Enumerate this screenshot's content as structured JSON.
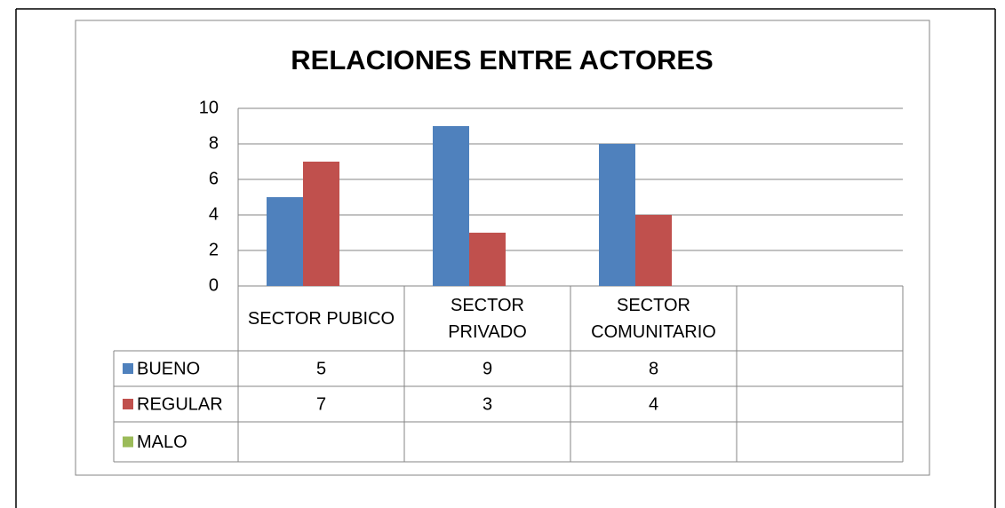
{
  "chart_data": {
    "type": "bar",
    "title": "RELACIONES ENTRE ACTORES",
    "categories": [
      "SECTOR PUBICO",
      "SECTOR PRIVADO",
      "SECTOR COMUNITARIO",
      null
    ],
    "series": [
      {
        "name": "BUENO",
        "color": "#4f81bd",
        "values": [
          5,
          9,
          8,
          null
        ]
      },
      {
        "name": "REGULAR",
        "color": "#c0504d",
        "values": [
          7,
          3,
          4,
          null
        ]
      },
      {
        "name": "MALO",
        "color": "#9bbb59",
        "values": [
          null,
          null,
          null,
          null
        ]
      }
    ],
    "ylim": [
      0,
      10
    ],
    "yticks": [
      0,
      2,
      4,
      6,
      8,
      10
    ],
    "grid": true,
    "data_table": true
  }
}
